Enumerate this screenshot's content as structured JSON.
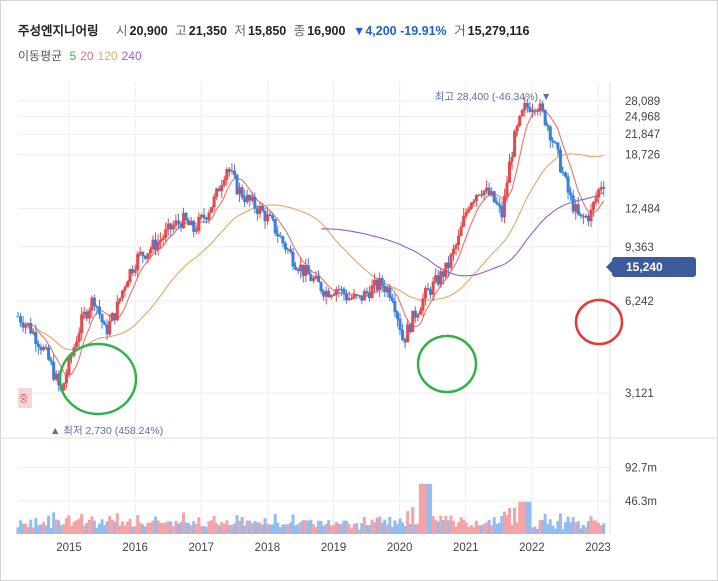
{
  "header": {
    "name": "주성엔지니어링",
    "open_label": "시",
    "open": "20,900",
    "high_label": "고",
    "high": "21,350",
    "low_label": "저",
    "low": "15,850",
    "close_label": "종",
    "close": "16,900",
    "change_arrow": "▼",
    "change": "4,200",
    "change_pct": "-19.91%",
    "volume_label": "거",
    "volume": "15,279,116"
  },
  "ma_legend": {
    "label": "이동평균",
    "periods": [
      {
        "text": "5",
        "color": "#3fae49"
      },
      {
        "text": "20",
        "color": "#ef6f6c"
      },
      {
        "text": "120",
        "color": "#f0a35e"
      },
      {
        "text": "240",
        "color": "#9b59d6"
      }
    ]
  },
  "annotations": {
    "max_label": "최고 28,400 (-46.34%)",
    "max_arrow": "▼",
    "min_label": "최저 2,730 (458.24%)",
    "min_arrow": "▲",
    "current_price": "15,240",
    "edge_badge": "중"
  },
  "chart_data": {
    "type": "candlestick",
    "x_ticks": [
      "2015",
      "2016",
      "2017",
      "2018",
      "2019",
      "2020",
      "2021",
      "2022",
      "2023"
    ],
    "price_axis_ticks": [
      "28,089",
      "24,968",
      "21,847",
      "18,726",
      "12,484",
      "9,363",
      "6,242",
      "3,121"
    ],
    "volume_axis_ticks": [
      "92.7m",
      "46.3m"
    ],
    "colors": {
      "up": "#e8474b",
      "down": "#3a7fe0",
      "volume_up": "#f4a3a6",
      "volume_down": "#93bdf1",
      "grid": "#eeeeee"
    },
    "price_points": [
      [
        "2014-05",
        5600
      ],
      [
        "2014-07",
        5200
      ],
      [
        "2014-09",
        4600
      ],
      [
        "2014-11",
        3900
      ],
      [
        "2015-01",
        3100
      ],
      [
        "2015-03",
        4200
      ],
      [
        "2015-05",
        5500
      ],
      [
        "2015-07",
        6400
      ],
      [
        "2015-09",
        4900
      ],
      [
        "2015-11",
        5800
      ],
      [
        "2016-01",
        7500
      ],
      [
        "2016-03",
        8700
      ],
      [
        "2016-05",
        9200
      ],
      [
        "2016-07",
        9900
      ],
      [
        "2016-09",
        10800
      ],
      [
        "2016-11",
        11500
      ],
      [
        "2017-01",
        10600
      ],
      [
        "2017-03",
        11800
      ],
      [
        "2017-05",
        13500
      ],
      [
        "2017-07",
        17200
      ],
      [
        "2017-09",
        14500
      ],
      [
        "2017-11",
        13200
      ],
      [
        "2018-01",
        12400
      ],
      [
        "2018-03",
        11300
      ],
      [
        "2018-05",
        9800
      ],
      [
        "2018-07",
        8600
      ],
      [
        "2018-09",
        7800
      ],
      [
        "2018-11",
        7200
      ],
      [
        "2019-01",
        6700
      ],
      [
        "2019-03",
        6900
      ],
      [
        "2019-05",
        6400
      ],
      [
        "2019-07",
        6300
      ],
      [
        "2019-09",
        6800
      ],
      [
        "2019-11",
        7100
      ],
      [
        "2020-01",
        6600
      ],
      [
        "2020-03",
        4600
      ],
      [
        "2020-05",
        5600
      ],
      [
        "2020-07",
        6500
      ],
      [
        "2020-09",
        7200
      ],
      [
        "2020-11",
        8000
      ],
      [
        "2021-01",
        9800
      ],
      [
        "2021-03",
        13200
      ],
      [
        "2021-05",
        14600
      ],
      [
        "2021-07",
        13600
      ],
      [
        "2021-09",
        11800
      ],
      [
        "2021-11",
        20500
      ],
      [
        "2022-01",
        26500
      ],
      [
        "2022-03",
        27800
      ],
      [
        "2022-05",
        24000
      ],
      [
        "2022-07",
        18500
      ],
      [
        "2022-09",
        13800
      ],
      [
        "2022-11",
        11400
      ],
      [
        "2023-01",
        12000
      ],
      [
        "2023-03",
        15240
      ]
    ],
    "ma_series": [
      {
        "name": "5",
        "color": "#3fae49"
      },
      {
        "name": "20",
        "color": "#ef6f6c"
      },
      {
        "name": "120",
        "color": "#f0a35e"
      },
      {
        "name": "240",
        "color": "#9b59d6"
      }
    ],
    "price_range": [
      2400,
      30000
    ],
    "volume_range": [
      0,
      120
    ]
  }
}
